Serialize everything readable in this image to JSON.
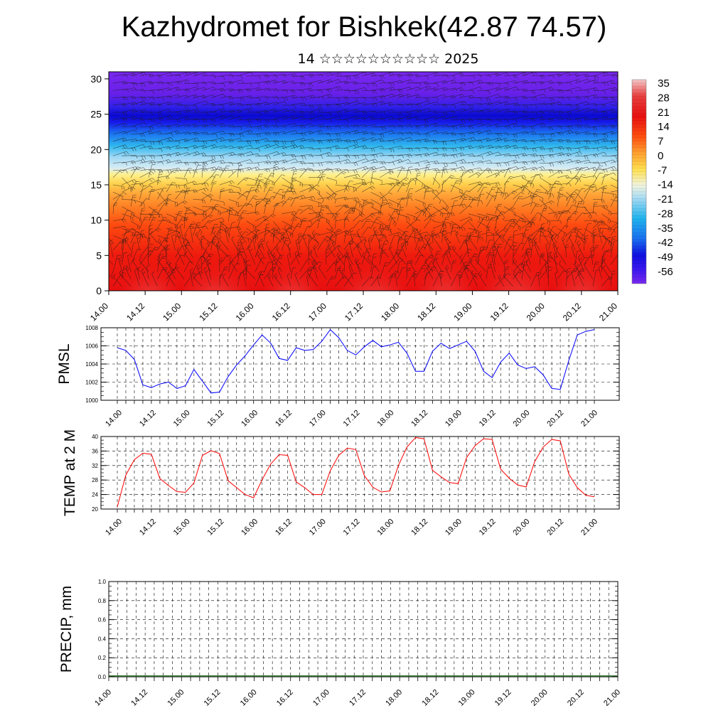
{
  "header": {
    "title": "Kazhydromet for Bishkek(42.87 74.57)",
    "subtitle": "14 ☆☆☆☆☆☆☆☆☆☆ 2025"
  },
  "chart_data": [
    {
      "type": "heatmap",
      "name": "vertical-cross-section",
      "xlabel": "",
      "ylabel": "",
      "x_ticks": [
        "14.00",
        "14.12",
        "15.00",
        "15.12",
        "16.00",
        "16.12",
        "17.00",
        "17.12",
        "18.00",
        "18.12",
        "19.00",
        "19.12",
        "20.00",
        "20.12",
        "21.00"
      ],
      "ylim": [
        0,
        31
      ],
      "y_ticks": [
        0,
        5,
        10,
        15,
        20,
        25,
        30
      ],
      "colorbar": {
        "labels": [
          "35",
          "28",
          "21",
          "14",
          "7",
          "0",
          "-7",
          "-14",
          "-21",
          "-28",
          "-35",
          "-42",
          "-49",
          "-56"
        ],
        "range": [
          -63,
          42
        ]
      },
      "overlay": "wind barbs"
    },
    {
      "type": "line",
      "name": "pmsl",
      "ylabel": "PMSL",
      "ylim": [
        1000,
        1008
      ],
      "y_ticks": [
        "1000",
        "1002",
        "1004",
        "1006",
        "1008"
      ],
      "x_ticks": [
        "14.00",
        "14.12",
        "15.00",
        "15.12",
        "16.00",
        "16.12",
        "17.00",
        "17.12",
        "18.00",
        "18.12",
        "19.00",
        "19.12",
        "20.00",
        "20.12",
        "21.00"
      ],
      "color": "#0000ff",
      "values": [
        1005.8,
        1005.5,
        1004.5,
        1001.7,
        1001.4,
        1001.8,
        1002.0,
        1001.3,
        1001.6,
        1003.4,
        1002.1,
        1000.8,
        1000.9,
        1002.6,
        1003.9,
        1004.9,
        1006.1,
        1007.2,
        1006.3,
        1004.6,
        1004.4,
        1005.8,
        1005.5,
        1005.6,
        1006.5,
        1007.8,
        1006.9,
        1005.5,
        1005.0,
        1005.9,
        1006.6,
        1005.9,
        1006.1,
        1006.4,
        1005.2,
        1003.2,
        1003.2,
        1005.4,
        1006.3,
        1005.7,
        1006.1,
        1006.5,
        1005.4,
        1003.2,
        1002.5,
        1004.2,
        1005.2,
        1003.9,
        1003.5,
        1003.7,
        1002.8,
        1001.3,
        1001.2,
        1004.4,
        1007.2,
        1007.6,
        1007.8
      ]
    },
    {
      "type": "line",
      "name": "temp-2m",
      "ylabel": "TEMP at 2 M",
      "ylim": [
        20,
        40
      ],
      "y_ticks": [
        "20",
        "24",
        "28",
        "32",
        "36",
        "40"
      ],
      "x_ticks": [
        "14.00",
        "14.12",
        "15.00",
        "15.12",
        "16.00",
        "16.12",
        "17.00",
        "17.12",
        "18.00",
        "18.12",
        "19.00",
        "19.12",
        "20.00",
        "20.12",
        "21.00"
      ],
      "color": "#ff0000",
      "values": [
        20.6,
        29.4,
        33.6,
        35.4,
        35.1,
        28.4,
        26.5,
        24.8,
        24.6,
        27.2,
        34.8,
        36.1,
        35.3,
        27.8,
        25.9,
        24.0,
        23.1,
        28.1,
        32.4,
        35.0,
        34.8,
        27.5,
        25.9,
        24.0,
        24.0,
        30.6,
        34.8,
        36.8,
        36.4,
        29.2,
        26.0,
        24.7,
        25.0,
        32.0,
        37.1,
        39.7,
        39.4,
        30.7,
        28.9,
        27.3,
        27.0,
        34.2,
        37.5,
        39.4,
        39.2,
        31.0,
        28.5,
        26.6,
        26.1,
        33.1,
        37.1,
        39.2,
        38.8,
        29.6,
        25.9,
        23.8,
        23.4
      ]
    },
    {
      "type": "bar",
      "name": "precip",
      "ylabel": "PRECIP, mm",
      "ylim": [
        0,
        1
      ],
      "y_ticks": [
        "0.0",
        "0.2",
        "0.4",
        "0.6",
        "0.8",
        "1.0"
      ],
      "x_ticks": [
        "14.00",
        "14.12",
        "15.00",
        "15.12",
        "16.00",
        "16.12",
        "17.00",
        "17.12",
        "18.00",
        "18.12",
        "19.00",
        "19.12",
        "20.00",
        "20.12",
        "21.00"
      ],
      "values": [],
      "zero_line_color": "#2e6b2e"
    }
  ]
}
